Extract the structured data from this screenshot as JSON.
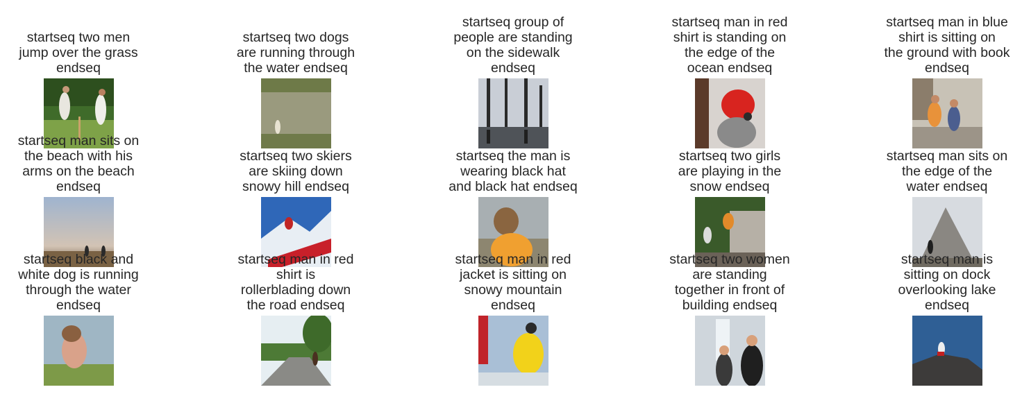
{
  "rows": [
    {
      "cells": [
        {
          "caption": "startseq two men\njump over the grass\nendseq",
          "image": "cricket-players-on-grass-photo"
        },
        {
          "caption": "startseq two dogs\nare running through\nthe water endseq",
          "image": "person-fishing-in-river-photo"
        },
        {
          "caption": "startseq group of\npeople are standing\non the sidewalk\nendseq",
          "image": "trees-reflected-in-lake-photo"
        },
        {
          "caption": "startseq man in red\nshirt is standing on\nthe edge of the\nocean endseq",
          "image": "dog-wearing-red-cap-photo"
        },
        {
          "caption": "startseq man in blue\nshirt is sitting on\nthe ground with book\nendseq",
          "image": "children-playing-outdoors-photo"
        }
      ]
    },
    {
      "cells": [
        {
          "caption": "startseq man sits on\nthe beach with his\narms on the beach\nendseq",
          "image": "people-on-shore-at-dusk-photo"
        },
        {
          "caption": "startseq two skiers\nare skiing down\nsnowy hill endseq",
          "image": "snowboarder-jumping-photo"
        },
        {
          "caption": "startseq the man is\nwearing black hat\nand black hat endseq",
          "image": "child-in-orange-near-water-photo"
        },
        {
          "caption": "startseq two girls\nare playing in the\nsnow endseq",
          "image": "people-on-playground-photo"
        },
        {
          "caption": "startseq man sits on\nthe edge of the\nwater endseq",
          "image": "person-sitting-by-stone-sculpture-photo"
        }
      ]
    },
    {
      "cells": [
        {
          "caption": "startseq black and\nwhite dog is running\nthrough the water\nendseq",
          "image": "child-in-lake-photo"
        },
        {
          "caption": "startseq man in red\nshirt is\nrollerblading down\nthe road endseq",
          "image": "park-path-with-trees-photo"
        },
        {
          "caption": "startseq man in red\njacket is sitting on\nsnowy mountain\nendseq",
          "image": "climber-in-yellow-jacket-photo"
        },
        {
          "caption": "startseq two women\nare standing\ntogether in front of\nbuilding endseq",
          "image": "couple-by-fountain-photo"
        },
        {
          "caption": "startseq man is\nsitting on dock\noverlooking lake\nendseq",
          "image": "person-on-rocks-by-sea-photo"
        }
      ]
    }
  ]
}
